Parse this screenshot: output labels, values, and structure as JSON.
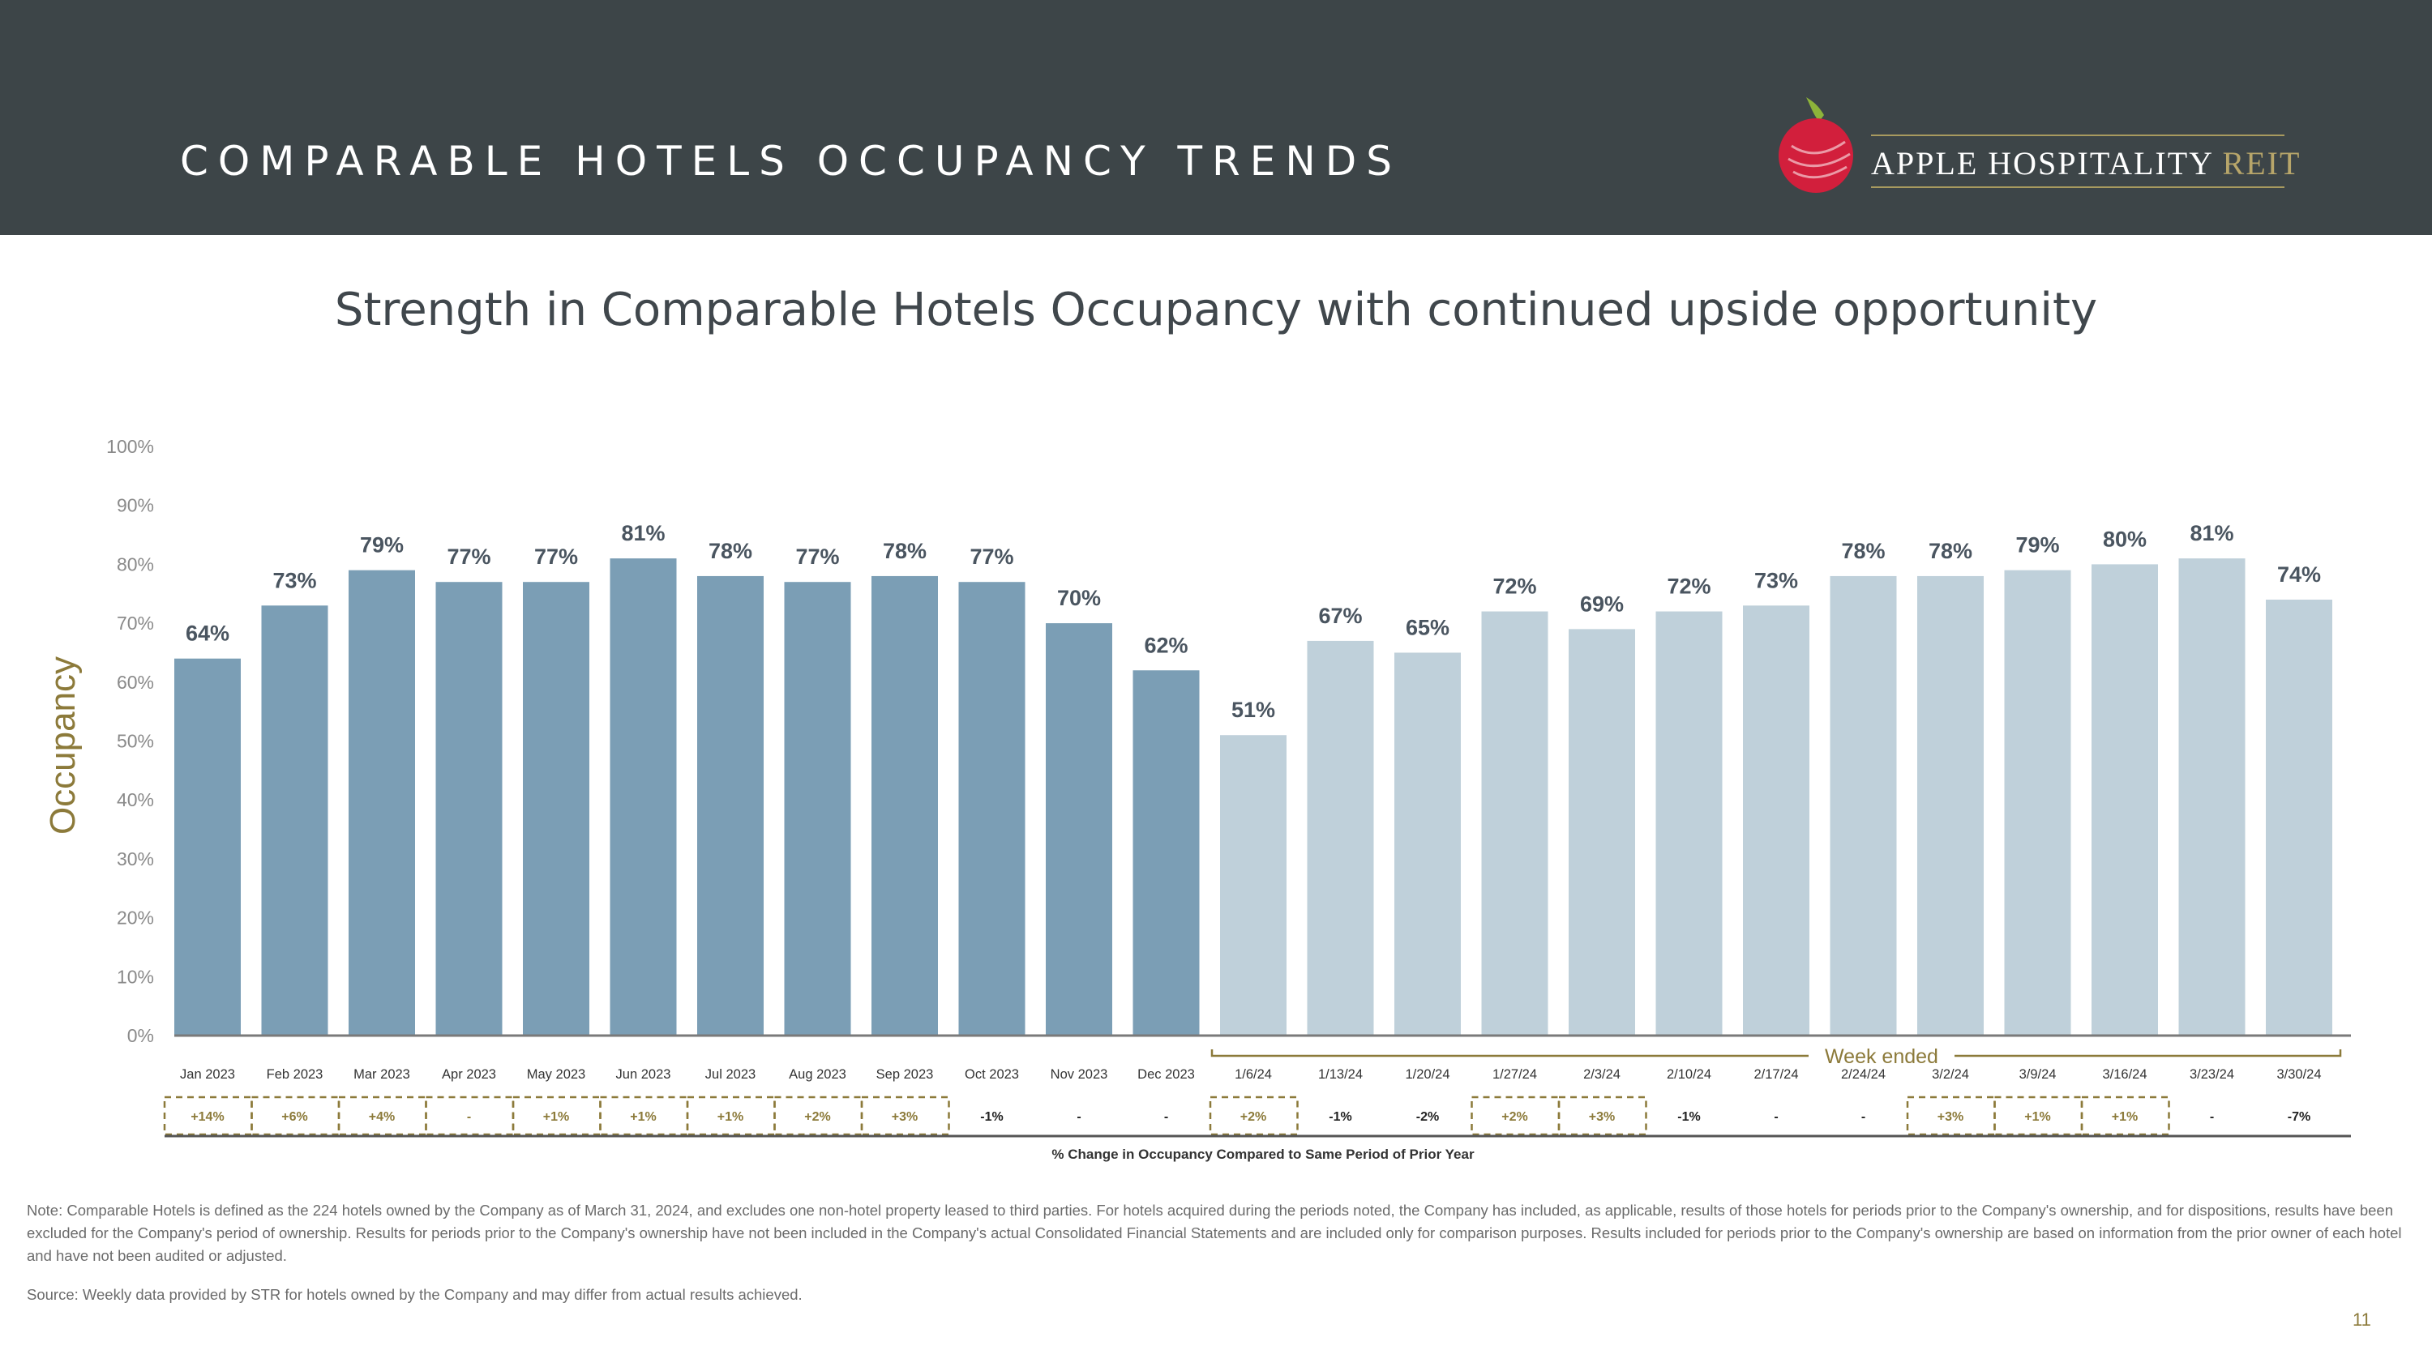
{
  "header": {
    "title": "COMPARABLE HOTELS OCCUPANCY TRENDS",
    "logo_text": "APPLE HOSPITALITY",
    "logo_reit": "REIT"
  },
  "subtitle": "Strength in Comparable Hotels Occupancy with continued upside opportunity",
  "colors": {
    "monthly_bar": "#7b9eb5",
    "weekly_bar": "#bfd0da",
    "accent_gold": "#8c7a3a",
    "header_bg": "#3d4548"
  },
  "chart_data": {
    "type": "bar",
    "ylabel": "Occupancy",
    "ylim": [
      0,
      100
    ],
    "yticks": [
      "0%",
      "10%",
      "20%",
      "30%",
      "40%",
      "50%",
      "60%",
      "70%",
      "80%",
      "90%",
      "100%"
    ],
    "categories": [
      "Jan 2023",
      "Feb 2023",
      "Mar 2023",
      "Apr 2023",
      "May 2023",
      "Jun 2023",
      "Jul 2023",
      "Aug 2023",
      "Sep 2023",
      "Oct 2023",
      "Nov 2023",
      "Dec 2023",
      "1/6/24",
      "1/13/24",
      "1/20/24",
      "1/27/24",
      "2/3/24",
      "2/10/24",
      "2/17/24",
      "2/24/24",
      "3/2/24",
      "3/9/24",
      "3/16/24",
      "3/23/24",
      "3/30/24"
    ],
    "values": [
      64,
      73,
      79,
      77,
      77,
      81,
      78,
      77,
      78,
      77,
      70,
      62,
      51,
      67,
      65,
      72,
      69,
      72,
      73,
      78,
      78,
      79,
      80,
      81,
      74
    ],
    "data_labels": [
      "64%",
      "73%",
      "79%",
      "77%",
      "77%",
      "81%",
      "78%",
      "77%",
      "78%",
      "77%",
      "70%",
      "62%",
      "51%",
      "67%",
      "65%",
      "72%",
      "69%",
      "72%",
      "73%",
      "78%",
      "78%",
      "79%",
      "80%",
      "81%",
      "74%"
    ],
    "series_kind": [
      "monthly",
      "monthly",
      "monthly",
      "monthly",
      "monthly",
      "monthly",
      "monthly",
      "monthly",
      "monthly",
      "monthly",
      "monthly",
      "monthly",
      "weekly",
      "weekly",
      "weekly",
      "weekly",
      "weekly",
      "weekly",
      "weekly",
      "weekly",
      "weekly",
      "weekly",
      "weekly",
      "weekly",
      "weekly"
    ],
    "week_bracket_label": "Week ended",
    "pct_change": [
      "+14%",
      "+6%",
      "+4%",
      "-",
      "+1%",
      "+1%",
      "+1%",
      "+2%",
      "+3%",
      "-1%",
      "-",
      "-",
      "+2%",
      "-1%",
      "-2%",
      "+2%",
      "+3%",
      "-1%",
      "-",
      "-",
      "+3%",
      "+1%",
      "+1%",
      "-",
      "-7%"
    ],
    "pct_change_boxed": [
      true,
      true,
      true,
      true,
      true,
      true,
      true,
      true,
      true,
      false,
      false,
      false,
      true,
      false,
      false,
      true,
      true,
      false,
      false,
      false,
      true,
      true,
      true,
      false,
      false
    ],
    "pct_change_caption": "% Change in Occupancy Compared to Same Period of Prior Year"
  },
  "note": "Note:  Comparable Hotels is defined as the 224 hotels owned by the Company as of March 31, 2024, and excludes one non-hotel property leased to third parties. For hotels acquired during the periods noted, the Company has included, as applicable, results of those hotels for periods prior to the Company's ownership, and for dispositions, results have been excluded for the Company's period of ownership. Results for periods prior to the Company's ownership have not been included in the Company's actual Consolidated Financial Statements and are included only for comparison purposes. Results included for periods prior to the Company's ownership are based on information from the prior owner of each hotel and have not been audited or adjusted.",
  "source": "Source:  Weekly data provided by STR for hotels owned by the Company and may differ from actual results achieved.",
  "page_number": "11"
}
